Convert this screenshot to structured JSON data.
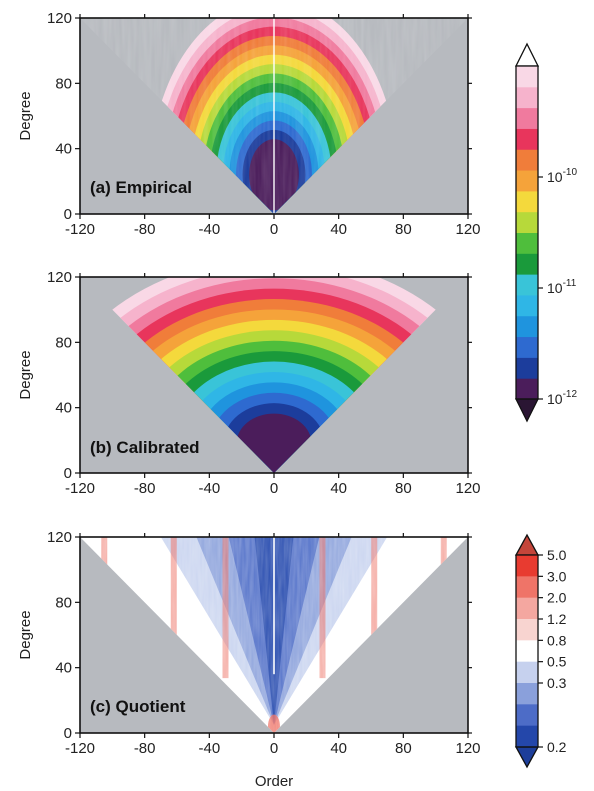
{
  "chart_data": [
    {
      "type": "heatmap",
      "panel_label": "(a) Empirical",
      "xlabel": "",
      "ylabel": "Degree",
      "xlim": [
        -120,
        120
      ],
      "ylim": [
        0,
        120
      ],
      "xticks": [
        "-120",
        "-80",
        "-40",
        "0",
        "40",
        "80",
        "120"
      ],
      "yticks": [
        "0",
        "40",
        "80",
        "120"
      ],
      "pattern": "noisy",
      "center_min_degree": 40
    },
    {
      "type": "heatmap",
      "panel_label": "(b) Calibrated",
      "xlabel": "",
      "ylabel": "Degree",
      "xlim": [
        -120,
        120
      ],
      "ylim": [
        0,
        120
      ],
      "xticks": [
        "-120",
        "-80",
        "-40",
        "0",
        "40",
        "80",
        "120"
      ],
      "yticks": [
        "0",
        "40",
        "80",
        "120"
      ],
      "pattern": "smooth",
      "center_min_degree": 30
    },
    {
      "type": "heatmap",
      "panel_label": "(c) Quotient",
      "xlabel": "Order",
      "ylabel": "Degree",
      "xlim": [
        -120,
        120
      ],
      "ylim": [
        0,
        120
      ],
      "xticks": [
        "-120",
        "-80",
        "-40",
        "0",
        "40",
        "80",
        "120"
      ],
      "yticks": [
        "0",
        "40",
        "80",
        "120"
      ],
      "pattern": "quotient"
    }
  ],
  "colorbar_top": {
    "scale": "log",
    "range": [
      1e-12,
      1e-09
    ],
    "labels": [
      {
        "base": "10",
        "exp": "-10",
        "value": 1e-10
      },
      {
        "base": "10",
        "exp": "-11",
        "value": 1e-11
      },
      {
        "base": "10",
        "exp": "-12",
        "value": 1e-12
      }
    ],
    "colors": [
      "#4b1d5b",
      "#1c3d9c",
      "#2e6ad0",
      "#1f94de",
      "#2fb6e6",
      "#39c4d8",
      "#1a9a3b",
      "#4fbe3c",
      "#b7d93a",
      "#f4d93c",
      "#f5a33a",
      "#f07d3a",
      "#e8355c",
      "#f07a9e",
      "#f6b3cc",
      "#f9d8e6"
    ]
  },
  "colorbar_bottom": {
    "labels": [
      "5.0",
      "3.0",
      "2.0",
      "1.2",
      "0.8",
      "0.5",
      "0.3",
      "0.2"
    ],
    "colors": [
      "#e83b30",
      "#ef7468",
      "#f4a7a0",
      "#f8d4d0",
      "#ffffff",
      "#c6d1ee",
      "#8aa0db",
      "#4d6cc7",
      "#2447aa"
    ]
  },
  "colors": {
    "background_gray": "#b7babf",
    "frame": "#111111"
  }
}
